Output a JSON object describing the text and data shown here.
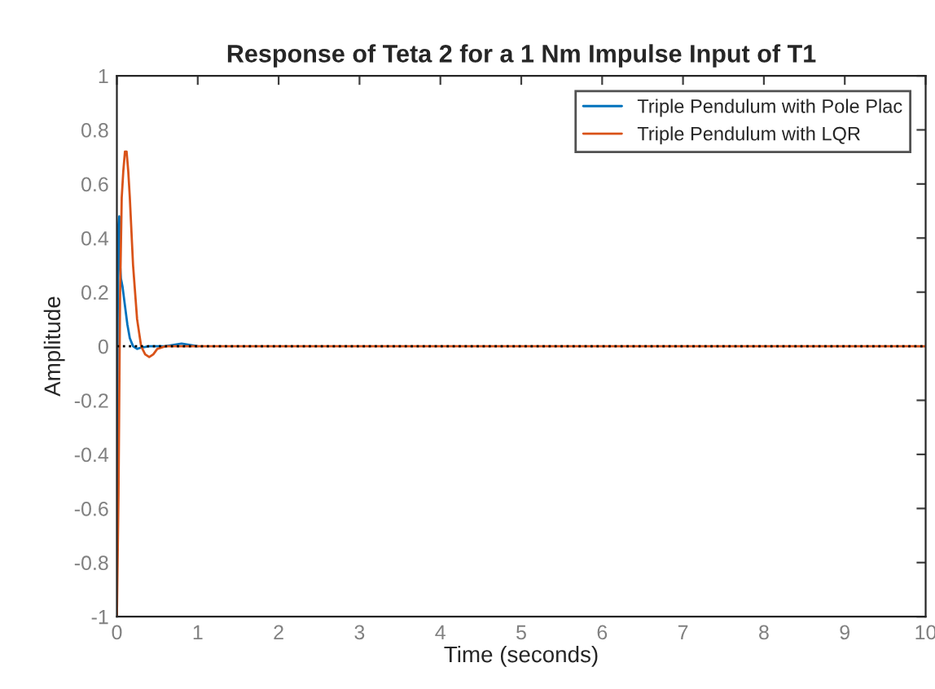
{
  "chart_data": {
    "type": "line",
    "title": "Response of Teta 2 for a 1 Nm Impulse Input of T1",
    "xlabel": "Time (seconds)",
    "ylabel": "Amplitude",
    "series": [
      {
        "name": "Triple Pendulum with Pole Plac",
        "color": "#0072bd",
        "x": [
          0,
          0.01,
          0.02,
          0.03,
          0.04,
          0.05,
          0.07,
          0.1,
          0.13,
          0.16,
          0.2,
          0.25,
          0.3,
          0.4,
          0.5,
          0.6,
          0.8,
          1.0
        ],
        "values": [
          -1,
          0.1,
          0.45,
          0.48,
          0.3,
          0.25,
          0.22,
          0.15,
          0.08,
          0.03,
          0.0,
          -0.01,
          -0.005,
          0.0,
          0.0,
          0.0,
          0.01,
          0.0
        ]
      },
      {
        "name": "Triple Pendulum with LQR",
        "color": "#d95319",
        "x": [
          0,
          0.02,
          0.04,
          0.06,
          0.08,
          0.1,
          0.12,
          0.14,
          0.16,
          0.2,
          0.25,
          0.3,
          0.35,
          0.4,
          0.45,
          0.5,
          0.6,
          0.8,
          1.0,
          2,
          4,
          6,
          8,
          10
        ],
        "values": [
          -1,
          -0.55,
          0.2,
          0.55,
          0.65,
          0.72,
          0.72,
          0.65,
          0.55,
          0.3,
          0.1,
          0.0,
          -0.03,
          -0.04,
          -0.03,
          -0.01,
          0.0,
          0.0,
          0.0,
          0,
          0,
          0,
          0,
          0
        ]
      }
    ],
    "ref_lines": [
      {
        "axis": "y",
        "value": 0,
        "color": "#000000",
        "line_style": "dotted"
      }
    ],
    "xlim": [
      0,
      10
    ],
    "xticks": [
      0,
      1,
      2,
      3,
      4,
      5,
      6,
      7,
      8,
      9,
      10
    ],
    "ylim": [
      -1,
      1
    ],
    "yticks": [
      -1,
      -0.8,
      -0.6,
      -0.4,
      -0.2,
      0,
      0.2,
      0.4,
      0.6,
      0.8,
      1
    ],
    "grid": false,
    "legend": "top right",
    "line_style": "solid",
    "marker": "none"
  }
}
